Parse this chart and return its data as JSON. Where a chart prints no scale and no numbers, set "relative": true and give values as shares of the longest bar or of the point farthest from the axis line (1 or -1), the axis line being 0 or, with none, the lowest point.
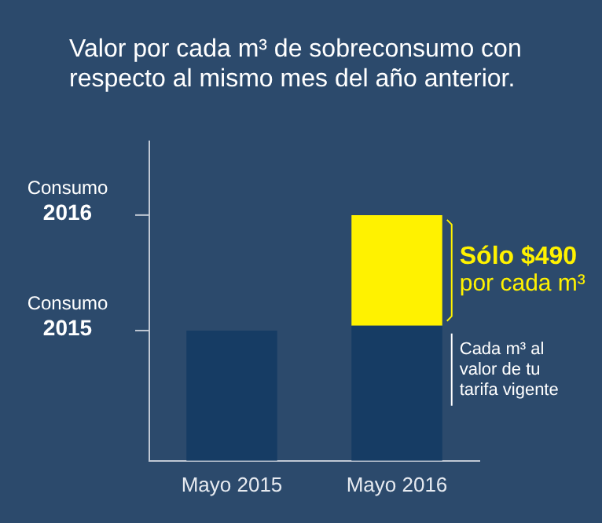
{
  "chart_data": {
    "type": "bar",
    "title": "Valor por cada m³ de sobreconsumo con respecto al mismo mes del año anterior.",
    "categories": [
      "Mayo 2015",
      "Mayo 2016"
    ],
    "stacked": true,
    "relative": true,
    "series": [
      {
        "color": "#163c64",
        "values": [
          0.53,
          0.55
        ]
      },
      {
        "color": "#fff200",
        "values": [
          null,
          0.45
        ]
      }
    ],
    "annotations": [
      "Consumo\n2016",
      "Consumo\n2015",
      "Sólo $490\npor cada m³",
      "Cada m³ al\nvalor de tu\ntarifa vigente"
    ],
    "grid": false,
    "legend": false
  }
}
